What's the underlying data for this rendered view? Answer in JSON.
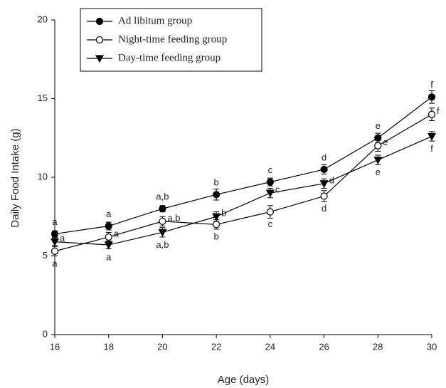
{
  "chart_data": {
    "type": "line",
    "x_label": "Age (days)",
    "y_label": "Daily Food Intake (g)",
    "x": [
      16,
      18,
      20,
      22,
      24,
      26,
      28,
      30
    ],
    "xlim": [
      16,
      30
    ],
    "xticks": [
      16,
      18,
      20,
      22,
      24,
      26,
      28,
      30
    ],
    "ylim": [
      0,
      20
    ],
    "yticks": [
      0,
      5,
      10,
      15,
      20
    ],
    "grid": false,
    "legend": "top-left",
    "series": [
      {
        "name": "Ad libitum group",
        "color": "#000000",
        "marker": "filled-circle",
        "values": [
          6.4,
          6.9,
          8.0,
          8.9,
          9.7,
          10.5,
          12.5,
          15.1
        ],
        "errors": [
          0.2,
          0.25,
          0.2,
          0.35,
          0.25,
          0.3,
          0.3,
          0.4
        ],
        "letters": [
          "a",
          "a",
          "a,b",
          "b",
          "c",
          "d",
          "e",
          "f"
        ]
      },
      {
        "name": "Night-time feeding group",
        "color": "#000000",
        "marker": "open-circle",
        "values": [
          5.3,
          6.2,
          7.2,
          7.0,
          7.8,
          8.8,
          12.0,
          14.0
        ],
        "errors": [
          0.3,
          0.3,
          0.3,
          0.3,
          0.4,
          0.35,
          0.35,
          0.4
        ],
        "letters": [
          "a",
          "a",
          "a,b",
          "b",
          "c",
          "d",
          "e",
          "f"
        ]
      },
      {
        "name": "Day-time feeding group",
        "color": "#000000",
        "marker": "filled-triangle-down",
        "values": [
          5.9,
          5.7,
          6.5,
          7.5,
          9.0,
          9.6,
          11.1,
          12.6
        ],
        "errors": [
          0.25,
          0.25,
          0.3,
          0.3,
          0.3,
          0.3,
          0.3,
          0.3
        ],
        "letters": [
          "a",
          "a",
          "a,b",
          "b",
          "c",
          "d",
          "e",
          "f"
        ]
      }
    ]
  }
}
